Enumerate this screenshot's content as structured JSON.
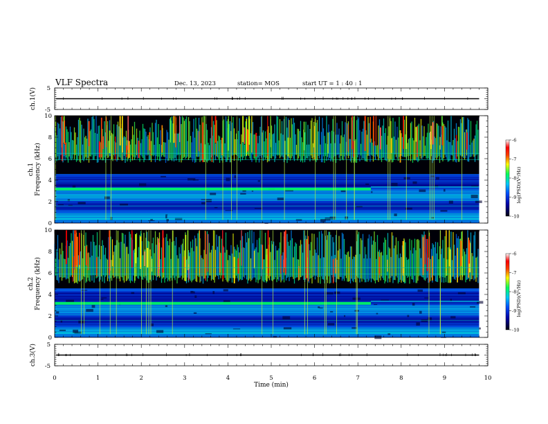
{
  "header": {
    "title": "VLF Spectra",
    "date": "Dec. 13, 2023",
    "station": "station= MOS",
    "start_ut": "start  UT =   1 : 40 : 1"
  },
  "chart_data": {
    "type": "heatmap",
    "x_axis": {
      "label": "Time  (min)",
      "range": [
        0,
        10
      ],
      "ticks": [
        "0",
        "1",
        "2",
        "3",
        "4",
        "5",
        "6",
        "7",
        "8",
        "9",
        "10"
      ]
    },
    "panels": [
      {
        "kind": "waveform",
        "ylabel": "ch.1(V)",
        "yrange": [
          -5,
          5
        ],
        "yticks": [
          "5",
          "-5"
        ]
      },
      {
        "kind": "spectrogram",
        "ylabel_1": "ch.1",
        "ylabel_2": "Frequency (kHz)",
        "yrange": [
          0,
          10
        ],
        "yticks": [
          "0",
          "2",
          "4",
          "6",
          "8",
          "10"
        ],
        "data_end_min": 9.8,
        "hiss_band_khz": [
          5.6,
          10
        ],
        "noise_band_khz": [
          0,
          4.5
        ],
        "line_3khz_ends_min": 7.3,
        "colorbar": {
          "label": "log(PSD)(V²/Hz)",
          "range": [
            -10,
            -6
          ],
          "ticks": [
            "-6",
            "-7",
            "-8",
            "-9",
            "-10"
          ]
        }
      },
      {
        "kind": "spectrogram",
        "ylabel_1": "ch.2",
        "ylabel_2": "Frequency (kHz)",
        "yrange": [
          0,
          10
        ],
        "yticks": [
          "0",
          "2",
          "4",
          "6",
          "8",
          "10"
        ],
        "data_end_min": 9.8,
        "hiss_band_khz": [
          5.0,
          10
        ],
        "noise_band_khz": [
          0,
          4.5
        ],
        "line_3khz_ends_min": 7.3,
        "colorbar": {
          "label": "log(PSD)(V²/Hz)",
          "range": [
            -10,
            -6
          ],
          "ticks": [
            "-6",
            "-7",
            "-8",
            "-9",
            "-10"
          ]
        }
      },
      {
        "kind": "waveform",
        "ylabel": "ch.3(V)",
        "yrange": [
          -5,
          5
        ],
        "yticks": [
          "5",
          "-5"
        ]
      }
    ],
    "colormap": [
      "#000010",
      "#0000a0",
      "#0050ff",
      "#00c8ff",
      "#00ff60",
      "#ffff00",
      "#ff4000",
      "#ff0000",
      "#ffffff"
    ]
  }
}
